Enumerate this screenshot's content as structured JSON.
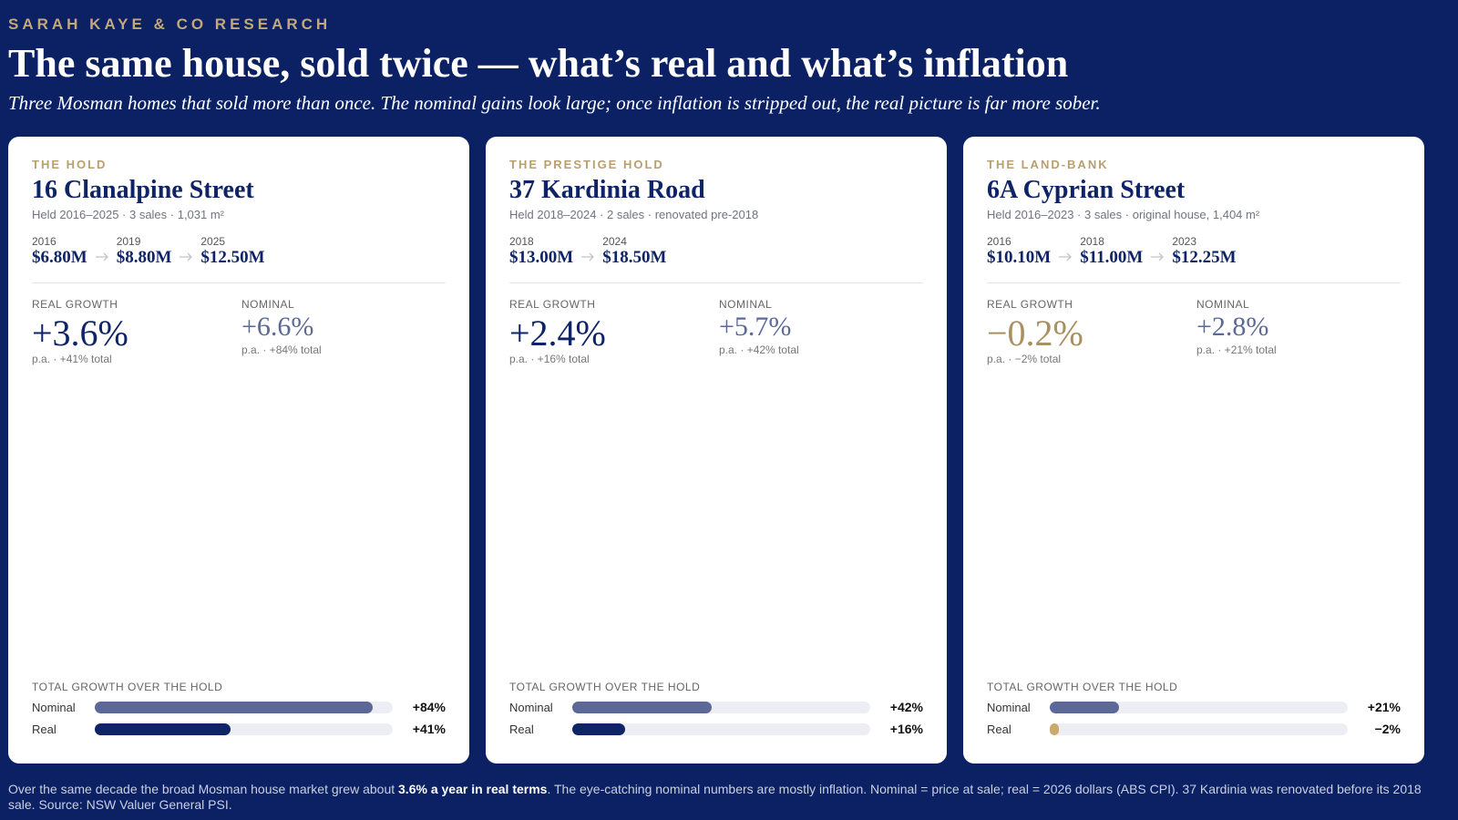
{
  "header": {
    "kicker": "SARAH KAYE & CO RESEARCH",
    "title": "The same house, sold twice — what’s real and what’s inflation",
    "subtitle": "Three Mosman homes that sold more than once. The nominal gains look large; once inflation is stripped out, the real picture is far more sober."
  },
  "cards": [
    {
      "tag": "THE HOLD",
      "name": "16 Clanalpine Street",
      "meta": "Held 2016–2025 · 3 sales · 1,031 m²",
      "sales": [
        {
          "year": "2016",
          "price": "$6.80M"
        },
        {
          "year": "2019",
          "price": "$8.80M"
        },
        {
          "year": "2025",
          "price": "$12.50M"
        }
      ],
      "real_label": "REAL GROWTH",
      "real_value": "+3.6%",
      "real_note": "p.a. · +41% total",
      "nominal_label": "NOMINAL",
      "nominal_value": "+6.6%",
      "nominal_note": "p.a. · +84% total",
      "bars_title": "TOTAL GROWTH OVER THE HOLD",
      "xlim": [
        0,
        90
      ],
      "bars": [
        {
          "name": "Nominal",
          "value": 84,
          "label": "+84%",
          "color": "#5b6898"
        },
        {
          "name": "Real",
          "value": 41,
          "label": "+41%",
          "color": "#0f2466"
        }
      ]
    },
    {
      "tag": "THE PRESTIGE HOLD",
      "name": "37 Kardinia Road",
      "meta": "Held 2018–2024 · 2 sales · renovated pre-2018",
      "sales": [
        {
          "year": "2018",
          "price": "$13.00M"
        },
        {
          "year": "2024",
          "price": "$18.50M"
        }
      ],
      "real_label": "REAL GROWTH",
      "real_value": "+2.4%",
      "real_note": "p.a. · +16% total",
      "nominal_label": "NOMINAL",
      "nominal_value": "+5.7%",
      "nominal_note": "p.a. · +42% total",
      "bars_title": "TOTAL GROWTH OVER THE HOLD",
      "xlim": [
        0,
        90
      ],
      "bars": [
        {
          "name": "Nominal",
          "value": 42,
          "label": "+42%",
          "color": "#5b6898"
        },
        {
          "name": "Real",
          "value": 16,
          "label": "+16%",
          "color": "#0f2466"
        }
      ]
    },
    {
      "tag": "THE LAND-BANK",
      "name": "6A Cyprian Street",
      "meta": "Held 2016–2023 · 3 sales · original house, 1,404 m²",
      "sales": [
        {
          "year": "2016",
          "price": "$10.10M"
        },
        {
          "year": "2018",
          "price": "$11.00M"
        },
        {
          "year": "2023",
          "price": "$12.25M"
        }
      ],
      "real_label": "REAL GROWTH",
      "real_value": "−0.2%",
      "real_value_color": "#a89060",
      "real_note": "p.a. · −2% total",
      "nominal_label": "NOMINAL",
      "nominal_value": "+2.8%",
      "nominal_note": "p.a. · +21% total",
      "bars_title": "TOTAL GROWTH OVER THE HOLD",
      "xlim": [
        0,
        90
      ],
      "bars": [
        {
          "name": "Nominal",
          "value": 21,
          "label": "+21%",
          "color": "#5b6898"
        },
        {
          "name": "Real",
          "value": -2,
          "label": "−2%",
          "color": "#c9a96e"
        }
      ]
    }
  ],
  "footer": {
    "text": [
      "Over the same decade the broad Mosman house market grew about ",
      "3.6% a year in real terms",
      ". The eye-catching nominal numbers are mostly inflation. Nominal = price at sale; real = 2026 dollars (ABS CPI). 37 Kardinia was renovated before its 2018 sale. Source: NSW Valuer General PSI."
    ]
  }
}
